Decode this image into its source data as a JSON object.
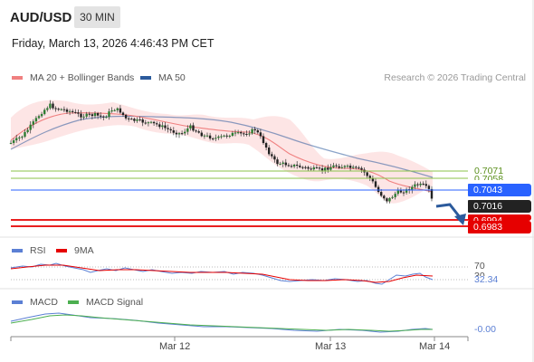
{
  "header": {
    "symbol": "AUD/USD",
    "timeframe": "30 MIN",
    "datetime": "Friday, March 13, 2026 4:46:43 PM CET"
  },
  "legend_main": {
    "ma20_label": "MA 20 + Bollinger Bands",
    "ma20_color": "#f08080",
    "ma50_label": "MA 50",
    "ma50_color": "#2b5a9c"
  },
  "credit": "Research © 2026 Trading Central",
  "price_levels": {
    "level_green_1": "0.7071",
    "level_green_2": "0.7058",
    "level_blue": "0.7043",
    "current": "0.7016",
    "level_red_1": "0.6994",
    "level_red_2": "0.6983"
  },
  "colors": {
    "green": "#8bc34a",
    "blue": "#2962ff",
    "red": "#e60000",
    "dark": "#222222",
    "arrow": "#2b5a9c"
  },
  "rsi": {
    "label": "RSI",
    "ma_label": "9MA",
    "level_70": "70",
    "level_30": "30",
    "value": "32.34",
    "rsi_color": "#5b7fd4",
    "ma_color": "#e60000"
  },
  "macd": {
    "label": "MACD",
    "signal_label": "MACD Signal",
    "value": "-0.00",
    "macd_color": "#5b7fd4",
    "signal_color": "#4caf50"
  },
  "x_axis": [
    "Mar 12",
    "Mar 13",
    "Mar 14"
  ]
}
